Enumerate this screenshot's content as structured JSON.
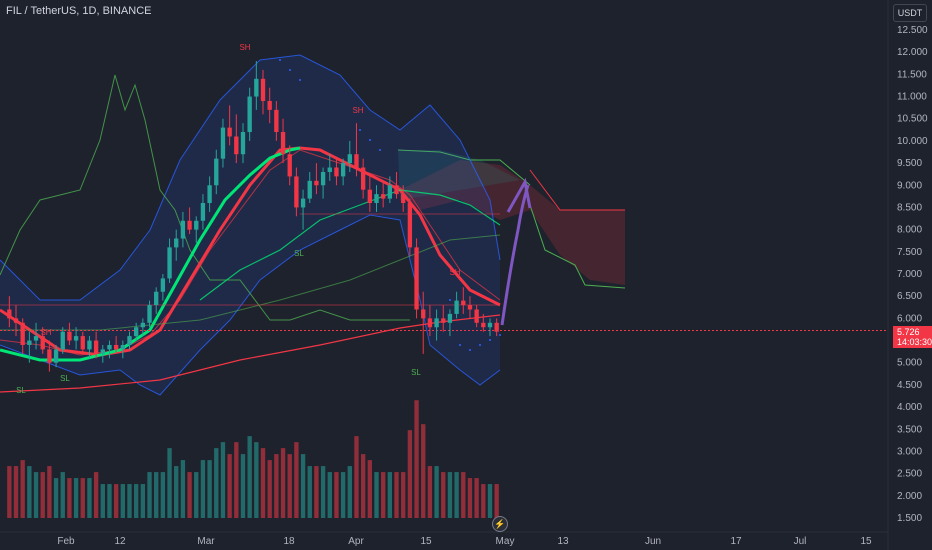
{
  "header": {
    "symbol": "FIL / TetherUS, 1D, BINANCE",
    "currency": "USDT"
  },
  "price_tag": {
    "price": "5.726",
    "countdown": "14:03:30"
  },
  "colors": {
    "bg": "#1e222d",
    "up": "#26a69a",
    "down": "#f23645",
    "ema_fast": "#00e676",
    "ema_slow": "#f23645",
    "bollinger": "#2962ff",
    "forecast": "#7e57c2"
  },
  "icons": {
    "bolt": "lightning-icon"
  },
  "chart_data": {
    "type": "candlestick",
    "title": "",
    "y_axis": {
      "ticks": [
        "12.500",
        "12.000",
        "11.500",
        "11.000",
        "10.500",
        "10.000",
        "9.500",
        "9.000",
        "8.500",
        "8.000",
        "7.500",
        "7.000",
        "6.500",
        "6.000",
        "5.500",
        "5.000",
        "4.500",
        "4.000",
        "3.500",
        "3.000",
        "2.500",
        "2.000",
        "1.500"
      ],
      "range": [
        1.3,
        12.9
      ]
    },
    "x_axis": {
      "ticks": [
        "Feb",
        "12",
        "Mar",
        "18",
        "Apr",
        "15",
        "May",
        "13",
        "Jun",
        "17",
        "Jul",
        "15"
      ]
    },
    "last_price": 5.726,
    "candles_ohlc": [
      [
        6.2,
        6.5,
        5.8,
        6.0
      ],
      [
        6.0,
        6.3,
        5.6,
        5.9
      ],
      [
        5.9,
        6.0,
        5.2,
        5.4
      ],
      [
        5.4,
        5.7,
        5.0,
        5.5
      ],
      [
        5.5,
        5.9,
        5.3,
        5.6
      ],
      [
        5.6,
        5.8,
        5.2,
        5.3
      ],
      [
        5.3,
        5.5,
        4.8,
        5.0
      ],
      [
        5.0,
        5.4,
        4.9,
        5.3
      ],
      [
        5.3,
        5.8,
        5.2,
        5.7
      ],
      [
        5.7,
        5.9,
        5.4,
        5.5
      ],
      [
        5.5,
        5.8,
        5.3,
        5.6
      ],
      [
        5.6,
        5.7,
        5.2,
        5.3
      ],
      [
        5.3,
        5.6,
        5.1,
        5.5
      ],
      [
        5.5,
        5.7,
        5.1,
        5.2
      ],
      [
        5.2,
        5.4,
        5.0,
        5.3
      ],
      [
        5.3,
        5.5,
        5.1,
        5.4
      ],
      [
        5.4,
        5.6,
        5.2,
        5.3
      ],
      [
        5.3,
        5.5,
        5.1,
        5.4
      ],
      [
        5.4,
        5.7,
        5.3,
        5.6
      ],
      [
        5.6,
        5.9,
        5.5,
        5.8
      ],
      [
        5.8,
        6.0,
        5.6,
        5.9
      ],
      [
        5.9,
        6.4,
        5.8,
        6.3
      ],
      [
        6.3,
        6.7,
        6.1,
        6.6
      ],
      [
        6.6,
        7.0,
        6.4,
        6.9
      ],
      [
        6.9,
        7.8,
        6.8,
        7.6
      ],
      [
        7.6,
        8.0,
        7.3,
        7.8
      ],
      [
        7.8,
        8.4,
        7.6,
        8.2
      ],
      [
        8.2,
        8.5,
        7.9,
        8.0
      ],
      [
        8.0,
        8.3,
        7.7,
        8.2
      ],
      [
        8.2,
        8.8,
        8.0,
        8.6
      ],
      [
        8.6,
        9.2,
        8.4,
        9.0
      ],
      [
        9.0,
        9.8,
        8.8,
        9.6
      ],
      [
        9.6,
        10.5,
        9.4,
        10.3
      ],
      [
        10.3,
        10.8,
        9.9,
        10.1
      ],
      [
        10.1,
        10.6,
        9.5,
        9.7
      ],
      [
        9.7,
        10.4,
        9.5,
        10.2
      ],
      [
        10.2,
        11.2,
        10.0,
        11.0
      ],
      [
        11.0,
        11.8,
        10.7,
        11.4
      ],
      [
        11.4,
        11.6,
        10.6,
        10.9
      ],
      [
        10.9,
        11.2,
        10.4,
        10.7
      ],
      [
        10.7,
        10.9,
        10.0,
        10.2
      ],
      [
        10.2,
        10.5,
        9.5,
        9.7
      ],
      [
        9.7,
        9.9,
        9.0,
        9.2
      ],
      [
        9.2,
        9.4,
        8.3,
        8.5
      ],
      [
        8.5,
        8.9,
        8.0,
        8.7
      ],
      [
        8.7,
        9.3,
        8.6,
        9.1
      ],
      [
        9.1,
        9.5,
        8.8,
        9.0
      ],
      [
        9.0,
        9.4,
        8.7,
        9.3
      ],
      [
        9.3,
        9.7,
        9.1,
        9.4
      ],
      [
        9.4,
        9.6,
        9.0,
        9.2
      ],
      [
        9.2,
        9.6,
        9.0,
        9.5
      ],
      [
        9.5,
        10.0,
        9.3,
        9.7
      ],
      [
        9.7,
        10.4,
        9.2,
        9.4
      ],
      [
        9.4,
        9.6,
        8.7,
        8.9
      ],
      [
        8.9,
        9.2,
        8.4,
        8.6
      ],
      [
        8.6,
        9.0,
        8.4,
        8.8
      ],
      [
        8.8,
        9.1,
        8.5,
        8.7
      ],
      [
        8.7,
        9.2,
        8.6,
        9.0
      ],
      [
        9.0,
        9.3,
        8.7,
        8.8
      ],
      [
        8.8,
        9.0,
        8.4,
        8.6
      ],
      [
        8.6,
        8.7,
        7.4,
        7.6
      ],
      [
        7.6,
        7.8,
        6.0,
        6.2
      ],
      [
        6.2,
        6.6,
        5.2,
        6.0
      ],
      [
        6.0,
        6.3,
        5.6,
        5.8
      ],
      [
        5.8,
        6.2,
        5.5,
        6.0
      ],
      [
        6.0,
        6.3,
        5.7,
        5.9
      ],
      [
        5.9,
        6.2,
        5.6,
        6.1
      ],
      [
        6.1,
        6.6,
        6.0,
        6.4
      ],
      [
        6.4,
        6.7,
        6.1,
        6.3
      ],
      [
        6.3,
        6.5,
        6.0,
        6.2
      ],
      [
        6.2,
        6.3,
        5.8,
        5.9
      ],
      [
        5.9,
        6.1,
        5.7,
        5.8
      ],
      [
        5.8,
        6.0,
        5.6,
        5.9
      ],
      [
        5.9,
        6.0,
        5.6,
        5.7
      ]
    ],
    "volume_scale_max": 4.3
  }
}
